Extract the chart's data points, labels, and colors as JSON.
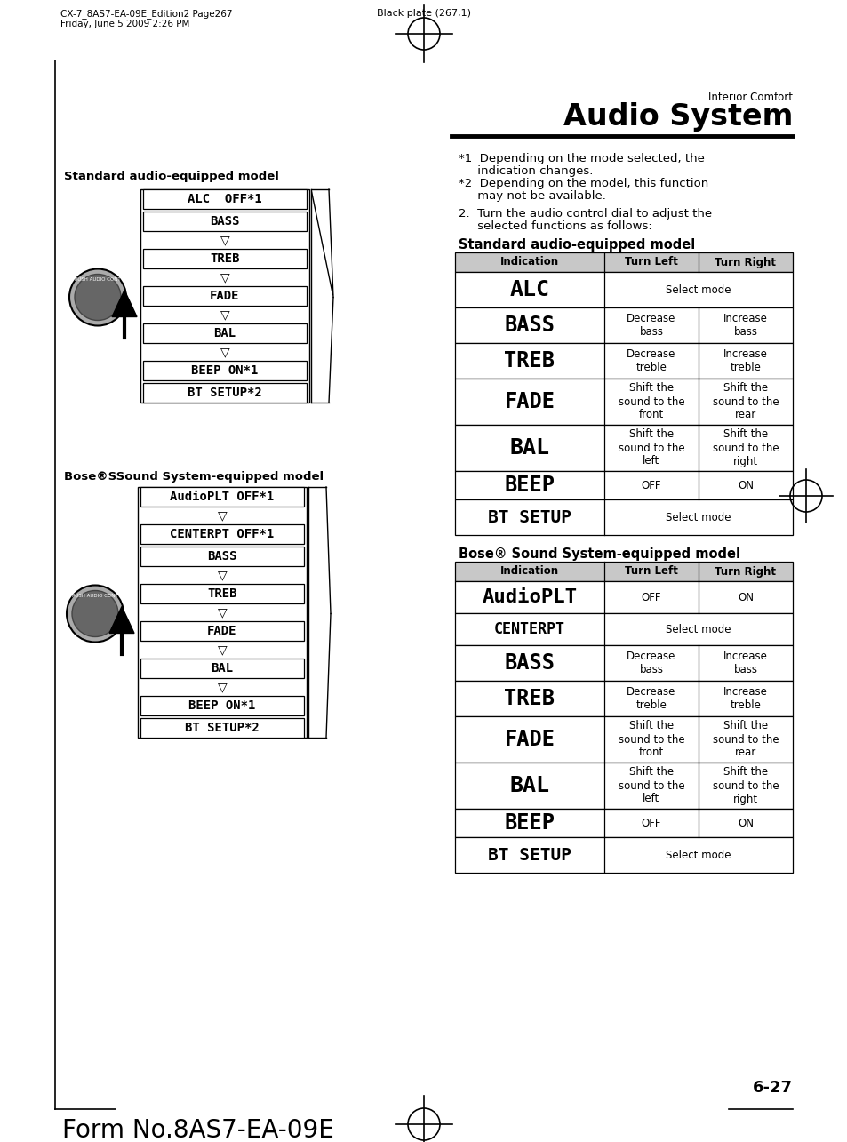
{
  "page_header_left1": "CX-7_8AS7-EA-09E_Edition2 Page267",
  "page_header_left2": "Friday, June 5 2009 2:26 PM",
  "page_header_center": "Black plate (267,1)",
  "section_label": "Interior Comfort",
  "section_title": "Audio System",
  "note1": "*1  Depending on the mode selected, the",
  "note1b": "     indication changes.",
  "note2": "*2  Depending on the model, this function",
  "note2b": "     may not be available.",
  "step2a": "2.  Turn the audio control dial to adjust the",
  "step2b": "     selected functions as follows:",
  "std_model_title": "Standard audio-equipped model",
  "std_table_header": [
    "Indication",
    "Turn Left",
    "Turn Right"
  ],
  "std_table_rows": [
    {
      "ind": "ALC",
      "left": "Select mode",
      "right": null,
      "rh": 40
    },
    {
      "ind": "BASS",
      "left": "Decrease\nbass",
      "right": "Increase\nbass",
      "rh": 40
    },
    {
      "ind": "TREB",
      "left": "Decrease\ntreble",
      "right": "Increase\ntreble",
      "rh": 40
    },
    {
      "ind": "FADE",
      "left": "Shift the\nsound to the\nfront",
      "right": "Shift the\nsound to the\nrear",
      "rh": 52
    },
    {
      "ind": "BAL",
      "left": "Shift the\nsound to the\nleft",
      "right": "Shift the\nsound to the\nright",
      "rh": 52
    },
    {
      "ind": "BEEP",
      "left": "OFF",
      "right": "ON",
      "rh": 32
    },
    {
      "ind": "BT SETUP",
      "left": "Select mode",
      "right": null,
      "rh": 40
    }
  ],
  "bose_model_title": "Bose® Sound System-equipped model",
  "bose_table_header": [
    "Indication",
    "Turn Left",
    "Turn Right"
  ],
  "bose_table_rows": [
    {
      "ind": "AudioPLT",
      "left": "OFF",
      "right": "ON",
      "rh": 36
    },
    {
      "ind": "CENTERPT",
      "left": "Select mode",
      "right": null,
      "rh": 36
    },
    {
      "ind": "BASS",
      "left": "Decrease\nbass",
      "right": "Increase\nbass",
      "rh": 40
    },
    {
      "ind": "TREB",
      "left": "Decrease\ntreble",
      "right": "Increase\ntreble",
      "rh": 40
    },
    {
      "ind": "FADE",
      "left": "Shift the\nsound to the\nfront",
      "right": "Shift the\nsound to the\nrear",
      "rh": 52
    },
    {
      "ind": "BAL",
      "left": "Shift the\nsound to the\nleft",
      "right": "Shift the\nsound to the\nright",
      "rh": 52
    },
    {
      "ind": "BEEP",
      "left": "OFF",
      "right": "ON",
      "rh": 32
    },
    {
      "ind": "BT SETUP",
      "left": "Select mode",
      "right": null,
      "rh": 40
    }
  ],
  "left_std_title": "Standard audio-equipped model",
  "left_std_items": [
    {
      "txt": "ALC  OFF*1",
      "type": "box"
    },
    {
      "txt": "BASS",
      "type": "box"
    },
    {
      "txt": "▽",
      "type": "arrow"
    },
    {
      "txt": "TREB",
      "type": "box"
    },
    {
      "txt": "▽",
      "type": "arrow"
    },
    {
      "txt": "FADE",
      "type": "box"
    },
    {
      "txt": "▽",
      "type": "arrow"
    },
    {
      "txt": "BAL",
      "type": "box"
    },
    {
      "txt": "▽",
      "type": "arrow"
    },
    {
      "txt": "BEEP ON*1",
      "type": "box"
    },
    {
      "txt": "BT SETUP*2",
      "type": "box"
    }
  ],
  "left_bose_title": "Bose®SSound System-equipped model",
  "left_bose_items": [
    {
      "txt": "AudioPLT OFF*1",
      "type": "box"
    },
    {
      "txt": "▽",
      "type": "arrow"
    },
    {
      "txt": "CENTERPT OFF*1",
      "type": "box"
    },
    {
      "txt": "BASS",
      "type": "box"
    },
    {
      "txt": "▽",
      "type": "arrow"
    },
    {
      "txt": "TREB",
      "type": "box"
    },
    {
      "txt": "▽",
      "type": "arrow"
    },
    {
      "txt": "FADE",
      "type": "box"
    },
    {
      "txt": "▽",
      "type": "arrow"
    },
    {
      "txt": "BAL",
      "type": "box"
    },
    {
      "txt": "▽",
      "type": "arrow"
    },
    {
      "txt": "BEEP ON*1",
      "type": "box"
    },
    {
      "txt": "BT SETUP*2",
      "type": "box"
    }
  ],
  "page_number": "6-27",
  "form_number": "Form No.8AS7-EA-09E"
}
